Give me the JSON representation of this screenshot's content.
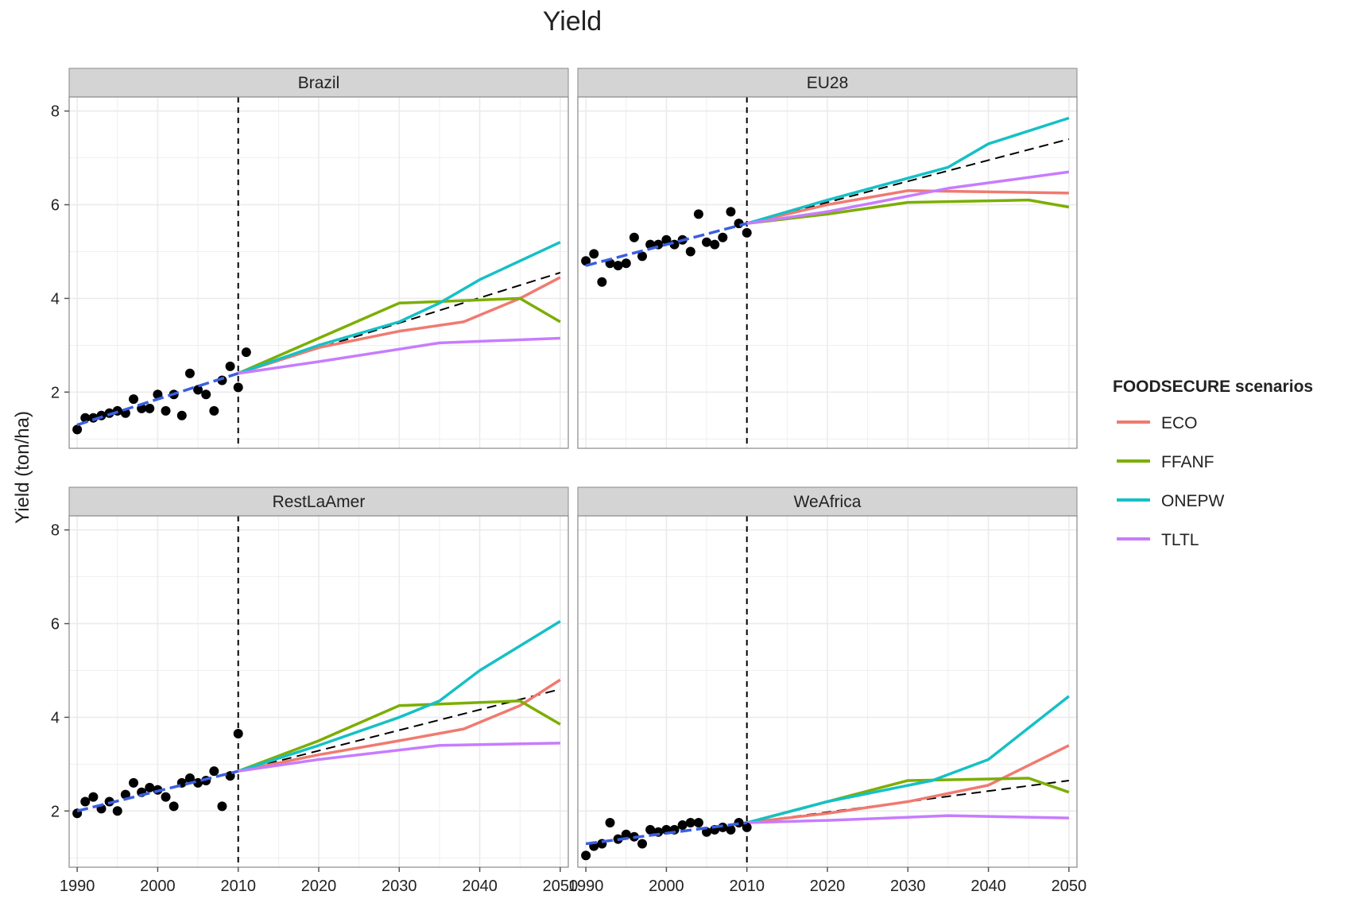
{
  "colors": {
    "ECO": "#F07A70",
    "FFANF": "#7CAE00",
    "ONEPW": "#15C0C6",
    "TLTL": "#C77CFF",
    "trend": "#3B5FE0",
    "points": "#000000",
    "strip_bg": "#D4D4D4",
    "grid": "#EBEBEB"
  },
  "chart_data": {
    "type": "line",
    "title": "Yield",
    "xlabel": "",
    "ylabel": "Yield (ton/ha)",
    "xlim": [
      1989,
      2051
    ],
    "ylim": [
      0.8,
      8.3
    ],
    "x_ticks": [
      1990,
      2000,
      2010,
      2020,
      2030,
      2040,
      2050
    ],
    "y_ticks": [
      2,
      4,
      6,
      8
    ],
    "vline_x": 2010,
    "legend": {
      "title": "FOODSECURE scenarios",
      "position": "right",
      "entries": [
        "ECO",
        "FFANF",
        "ONEPW",
        "TLTL"
      ]
    },
    "panels": [
      {
        "name": "Brazil",
        "observed": [
          [
            1990,
            1.2
          ],
          [
            1991,
            1.45
          ],
          [
            1992,
            1.45
          ],
          [
            1993,
            1.5
          ],
          [
            1994,
            1.55
          ],
          [
            1995,
            1.6
          ],
          [
            1996,
            1.55
          ],
          [
            1997,
            1.85
          ],
          [
            1998,
            1.65
          ],
          [
            1999,
            1.65
          ],
          [
            2000,
            1.95
          ],
          [
            2001,
            1.6
          ],
          [
            2002,
            1.95
          ],
          [
            2003,
            1.5
          ],
          [
            2004,
            2.4
          ],
          [
            2005,
            2.05
          ],
          [
            2006,
            1.95
          ],
          [
            2007,
            1.6
          ],
          [
            2008,
            2.25
          ],
          [
            2009,
            2.55
          ],
          [
            2010,
            2.1
          ],
          [
            2011,
            2.85
          ]
        ],
        "trend": [
          [
            1990,
            1.3
          ],
          [
            2010,
            2.4
          ]
        ],
        "baseline": [
          [
            2010,
            2.4
          ],
          [
            2050,
            4.55
          ]
        ],
        "series": [
          {
            "name": "ECO",
            "points": [
              [
                2010,
                2.4
              ],
              [
                2020,
                2.95
              ],
              [
                2030,
                3.3
              ],
              [
                2038,
                3.5
              ],
              [
                2045,
                4.0
              ],
              [
                2050,
                4.45
              ]
            ]
          },
          {
            "name": "FFANF",
            "points": [
              [
                2010,
                2.4
              ],
              [
                2020,
                3.15
              ],
              [
                2030,
                3.9
              ],
              [
                2045,
                4.0
              ],
              [
                2050,
                3.5
              ]
            ]
          },
          {
            "name": "ONEPW",
            "points": [
              [
                2010,
                2.4
              ],
              [
                2020,
                3.0
              ],
              [
                2030,
                3.5
              ],
              [
                2035,
                3.9
              ],
              [
                2040,
                4.4
              ],
              [
                2050,
                5.2
              ]
            ]
          },
          {
            "name": "TLTL",
            "points": [
              [
                2010,
                2.4
              ],
              [
                2020,
                2.65
              ],
              [
                2035,
                3.05
              ],
              [
                2050,
                3.15
              ]
            ]
          }
        ]
      },
      {
        "name": "EU28",
        "observed": [
          [
            1990,
            4.8
          ],
          [
            1991,
            4.95
          ],
          [
            1992,
            4.35
          ],
          [
            1993,
            4.75
          ],
          [
            1994,
            4.7
          ],
          [
            1995,
            4.75
          ],
          [
            1996,
            5.3
          ],
          [
            1997,
            4.9
          ],
          [
            1998,
            5.15
          ],
          [
            1999,
            5.15
          ],
          [
            2000,
            5.25
          ],
          [
            2001,
            5.15
          ],
          [
            2002,
            5.25
          ],
          [
            2003,
            5.0
          ],
          [
            2004,
            5.8
          ],
          [
            2005,
            5.2
          ],
          [
            2006,
            5.15
          ],
          [
            2007,
            5.3
          ],
          [
            2008,
            5.85
          ],
          [
            2009,
            5.6
          ],
          [
            2010,
            5.4
          ]
        ],
        "trend": [
          [
            1990,
            4.7
          ],
          [
            2010,
            5.6
          ]
        ],
        "baseline": [
          [
            2010,
            5.6
          ],
          [
            2050,
            7.4
          ]
        ],
        "series": [
          {
            "name": "ECO",
            "points": [
              [
                2010,
                5.6
              ],
              [
                2020,
                6.0
              ],
              [
                2030,
                6.3
              ],
              [
                2050,
                6.25
              ]
            ]
          },
          {
            "name": "FFANF",
            "points": [
              [
                2010,
                5.6
              ],
              [
                2020,
                5.8
              ],
              [
                2030,
                6.05
              ],
              [
                2045,
                6.1
              ],
              [
                2050,
                5.95
              ]
            ]
          },
          {
            "name": "ONEPW",
            "points": [
              [
                2010,
                5.6
              ],
              [
                2020,
                6.1
              ],
              [
                2035,
                6.8
              ],
              [
                2040,
                7.3
              ],
              [
                2050,
                7.85
              ]
            ]
          },
          {
            "name": "TLTL",
            "points": [
              [
                2010,
                5.6
              ],
              [
                2020,
                5.85
              ],
              [
                2035,
                6.35
              ],
              [
                2050,
                6.7
              ]
            ]
          }
        ]
      },
      {
        "name": "RestLaAmer",
        "observed": [
          [
            1990,
            1.95
          ],
          [
            1991,
            2.2
          ],
          [
            1992,
            2.3
          ],
          [
            1993,
            2.05
          ],
          [
            1994,
            2.2
          ],
          [
            1995,
            2.0
          ],
          [
            1996,
            2.35
          ],
          [
            1997,
            2.6
          ],
          [
            1998,
            2.4
          ],
          [
            1999,
            2.5
          ],
          [
            2000,
            2.45
          ],
          [
            2001,
            2.3
          ],
          [
            2002,
            2.1
          ],
          [
            2003,
            2.6
          ],
          [
            2004,
            2.7
          ],
          [
            2005,
            2.6
          ],
          [
            2006,
            2.65
          ],
          [
            2007,
            2.85
          ],
          [
            2008,
            2.1
          ],
          [
            2009,
            2.75
          ],
          [
            2010,
            3.65
          ]
        ],
        "trend": [
          [
            1990,
            2.0
          ],
          [
            2010,
            2.85
          ]
        ],
        "baseline": [
          [
            2010,
            2.85
          ],
          [
            2050,
            4.6
          ]
        ],
        "series": [
          {
            "name": "ECO",
            "points": [
              [
                2010,
                2.85
              ],
              [
                2020,
                3.2
              ],
              [
                2030,
                3.5
              ],
              [
                2038,
                3.75
              ],
              [
                2045,
                4.25
              ],
              [
                2050,
                4.8
              ]
            ]
          },
          {
            "name": "FFANF",
            "points": [
              [
                2010,
                2.85
              ],
              [
                2020,
                3.5
              ],
              [
                2030,
                4.25
              ],
              [
                2045,
                4.35
              ],
              [
                2050,
                3.85
              ]
            ]
          },
          {
            "name": "ONEPW",
            "points": [
              [
                2010,
                2.85
              ],
              [
                2020,
                3.4
              ],
              [
                2030,
                4.0
              ],
              [
                2035,
                4.35
              ],
              [
                2040,
                5.0
              ],
              [
                2050,
                6.05
              ]
            ]
          },
          {
            "name": "TLTL",
            "points": [
              [
                2010,
                2.85
              ],
              [
                2020,
                3.1
              ],
              [
                2035,
                3.4
              ],
              [
                2050,
                3.45
              ]
            ]
          }
        ]
      },
      {
        "name": "WeAfrica",
        "observed": [
          [
            1990,
            1.05
          ],
          [
            1991,
            1.25
          ],
          [
            1992,
            1.3
          ],
          [
            1993,
            1.75
          ],
          [
            1994,
            1.4
          ],
          [
            1995,
            1.5
          ],
          [
            1996,
            1.45
          ],
          [
            1997,
            1.3
          ],
          [
            1998,
            1.6
          ],
          [
            1999,
            1.55
          ],
          [
            2000,
            1.6
          ],
          [
            2001,
            1.6
          ],
          [
            2002,
            1.7
          ],
          [
            2003,
            1.75
          ],
          [
            2004,
            1.75
          ],
          [
            2005,
            1.55
          ],
          [
            2006,
            1.6
          ],
          [
            2007,
            1.65
          ],
          [
            2008,
            1.6
          ],
          [
            2009,
            1.75
          ],
          [
            2010,
            1.65
          ]
        ],
        "trend": [
          [
            1990,
            1.3
          ],
          [
            2010,
            1.75
          ]
        ],
        "baseline": [
          [
            2010,
            1.75
          ],
          [
            2050,
            2.65
          ]
        ],
        "series": [
          {
            "name": "ECO",
            "points": [
              [
                2010,
                1.75
              ],
              [
                2020,
                1.95
              ],
              [
                2030,
                2.2
              ],
              [
                2040,
                2.55
              ],
              [
                2050,
                3.4
              ]
            ]
          },
          {
            "name": "FFANF",
            "points": [
              [
                2010,
                1.75
              ],
              [
                2020,
                2.2
              ],
              [
                2030,
                2.65
              ],
              [
                2045,
                2.7
              ],
              [
                2050,
                2.4
              ]
            ]
          },
          {
            "name": "ONEPW",
            "points": [
              [
                2010,
                1.75
              ],
              [
                2020,
                2.2
              ],
              [
                2033,
                2.65
              ],
              [
                2040,
                3.1
              ],
              [
                2050,
                4.45
              ]
            ]
          },
          {
            "name": "TLTL",
            "points": [
              [
                2010,
                1.75
              ],
              [
                2020,
                1.8
              ],
              [
                2035,
                1.9
              ],
              [
                2050,
                1.85
              ]
            ]
          }
        ]
      }
    ]
  }
}
